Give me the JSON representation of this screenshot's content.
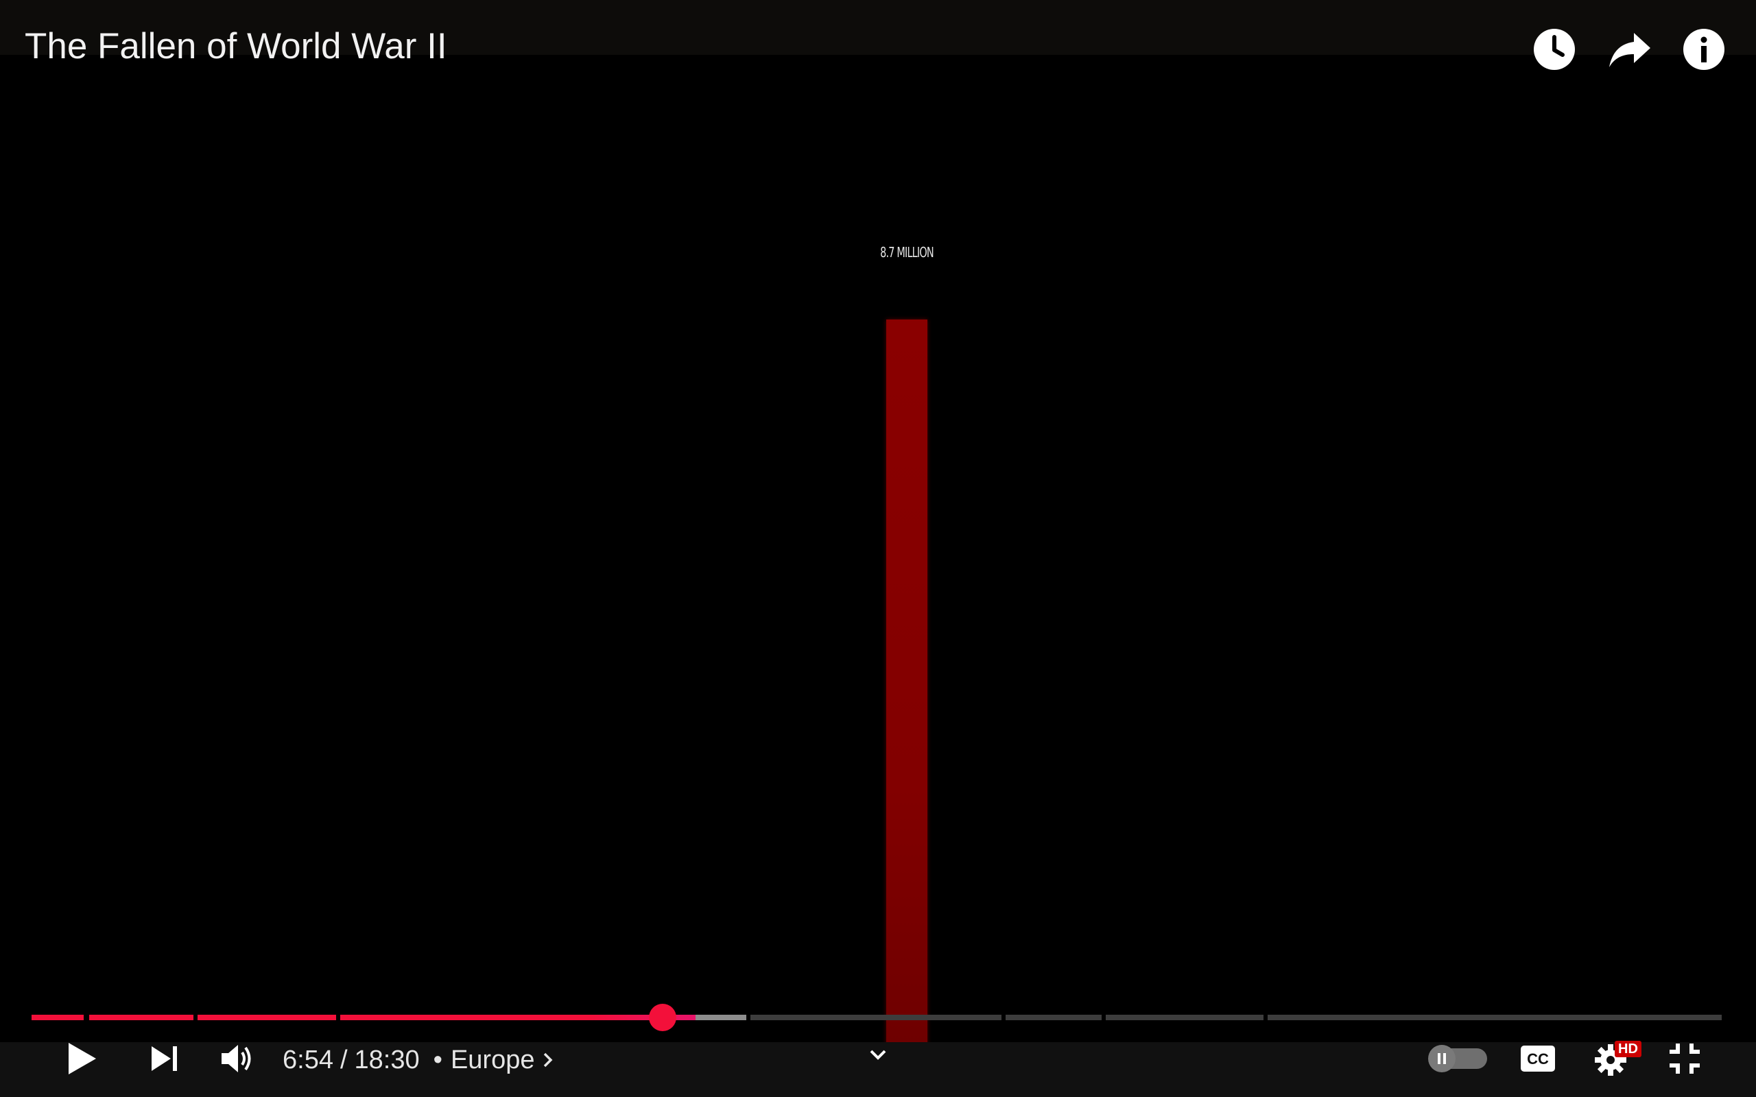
{
  "video": {
    "title": "The Fallen of World War II",
    "frame_bar_label": "8.7 MILLION"
  },
  "top_actions": {
    "watch_later_icon": "clock-icon",
    "share_icon": "share-arrow-icon",
    "info_icon": "info-icon"
  },
  "playback": {
    "current_time": "6:54",
    "separator": "/",
    "duration": "18:30",
    "chapter_dot": "•",
    "chapter": "Europe",
    "progress_fraction": 0.373
  },
  "controls": {
    "play_icon": "play-icon",
    "next_icon": "next-icon",
    "volume_icon": "volume-icon",
    "expand_icon": "chevron-down-icon",
    "autoplay_icon": "autoplay-toggle-icon",
    "cc_label": "CC",
    "settings_icon": "gear-icon",
    "hd_badge": "HD",
    "exit_fullscreen_icon": "exit-fullscreen-icon"
  },
  "colors": {
    "progress_played": "#f3103a",
    "progress_buffered": "#8d8d8d",
    "progress_unplayed": "#3d3d3d",
    "video_bar": "#8a0000"
  }
}
